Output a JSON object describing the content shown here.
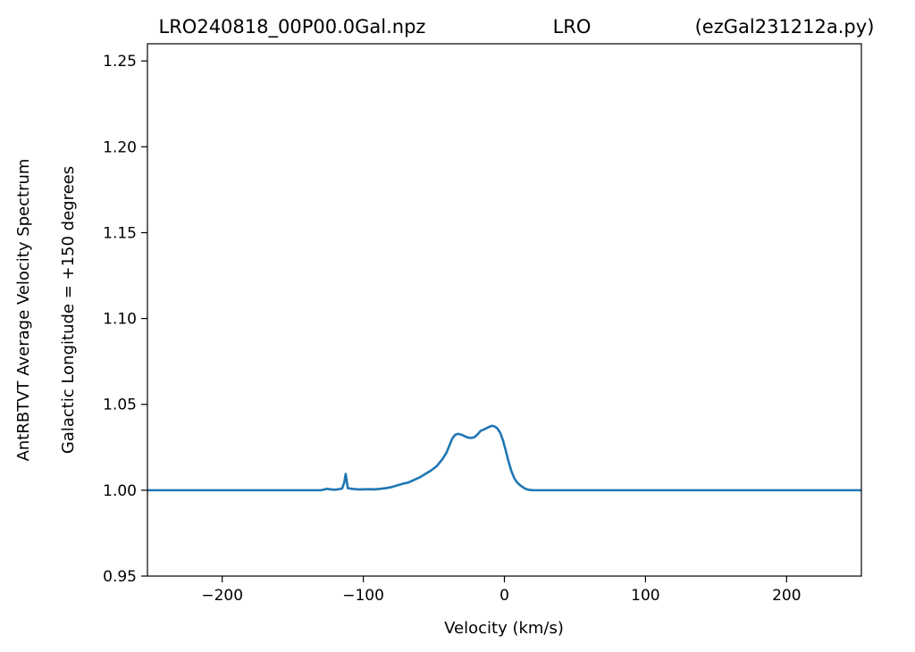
{
  "header": {
    "left": "LRO240818_00P00.0Gal.npz",
    "center": "LRO",
    "right": "(ezGal231212a.py)"
  },
  "chart_data": {
    "type": "line",
    "title": "",
    "xlabel": "Velocity (km/s)",
    "ylabel": "AntRBTVT Average Velocity Spectrum",
    "ylabel2": "Galactic Longitude = +150 degrees",
    "xlim": [
      -253,
      253
    ],
    "ylim": [
      0.95,
      1.26
    ],
    "xticks": [
      -200,
      -100,
      0,
      100,
      200
    ],
    "xtick_labels": [
      "−200",
      "−100",
      "0",
      "100",
      "200"
    ],
    "yticks": [
      0.95,
      1.0,
      1.05,
      1.1,
      1.15,
      1.2,
      1.25
    ],
    "ytick_labels": [
      "0.95",
      "1.00",
      "1.05",
      "1.10",
      "1.15",
      "1.20",
      "1.25"
    ],
    "grid": false,
    "line_color": "#1f77b4",
    "series": [
      {
        "x": [
          -253,
          -130,
          -126,
          -124,
          -121,
          -118,
          -115,
          -113.5,
          -112.5,
          -111,
          -108,
          -104,
          -100,
          -96,
          -92,
          -88,
          -84,
          -80,
          -76,
          -72,
          -68,
          -64,
          -60,
          -56,
          -52,
          -48,
          -44,
          -41,
          -39,
          -37,
          -35,
          -33,
          -31,
          -29,
          -27,
          -25,
          -23,
          -21,
          -19,
          -17,
          -15,
          -13,
          -11,
          -9,
          -7,
          -5,
          -3,
          -1,
          1,
          3,
          5,
          7,
          9,
          11,
          13,
          15,
          17,
          19,
          21,
          23,
          30,
          253
        ],
        "y": [
          1.0,
          1.0,
          1.0008,
          1.0006,
          1.0003,
          1.0005,
          1.001,
          1.0045,
          1.0095,
          1.0012,
          1.0008,
          1.0005,
          1.0005,
          1.0006,
          1.0005,
          1.0008,
          1.0012,
          1.0018,
          1.0028,
          1.0038,
          1.0045,
          1.006,
          1.0075,
          1.0095,
          1.0115,
          1.014,
          1.018,
          1.022,
          1.026,
          1.03,
          1.0322,
          1.0328,
          1.0325,
          1.0318,
          1.031,
          1.0305,
          1.0305,
          1.031,
          1.0325,
          1.0345,
          1.0352,
          1.036,
          1.0368,
          1.0375,
          1.0372,
          1.036,
          1.0335,
          1.029,
          1.023,
          1.0165,
          1.011,
          1.007,
          1.0045,
          1.003,
          1.0018,
          1.0008,
          1.0003,
          1.0001,
          1.0,
          1.0,
          1.0,
          1.0
        ]
      }
    ]
  }
}
